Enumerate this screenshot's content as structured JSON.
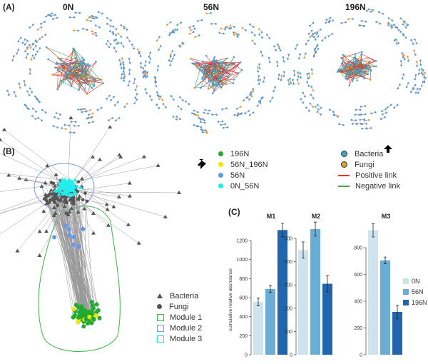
{
  "panel_a": {
    "label": "(A)",
    "networks": [
      {
        "title": "0N"
      },
      {
        "title": "56N"
      },
      {
        "title": "196N"
      }
    ]
  },
  "panel_b": {
    "label": "(B)",
    "group_legend": [
      {
        "label": "196N",
        "color": "#22aa33"
      },
      {
        "label": "56N_196N",
        "color": "#f2e600"
      },
      {
        "label": "56N",
        "color": "#6699ee"
      },
      {
        "label": "0N_56N",
        "color": "#22eeee"
      }
    ],
    "shape_legend": [
      {
        "label": "Bacteria",
        "symbol": "triangle"
      },
      {
        "label": "Fungi",
        "symbol": "circle"
      }
    ],
    "module_legend": [
      {
        "label": "Module 1",
        "color": "#33bb44"
      },
      {
        "label": "Module 2",
        "color": "#7799dd"
      },
      {
        "label": "Module 3",
        "color": "#22dddd"
      }
    ]
  },
  "network_legend": [
    {
      "label": "Bacteria",
      "kind": "dot",
      "color": "#4a9fd0"
    },
    {
      "label": "Fungi",
      "kind": "dot",
      "color": "#e0a030"
    },
    {
      "label": "Positive link",
      "kind": "line",
      "color": "#e83030"
    },
    {
      "label": "Negative link",
      "kind": "line",
      "color": "#44aa44"
    }
  ],
  "colors": {
    "node_bacteria": "#4a9fd0",
    "node_fungi": "#e0a030",
    "pos": "#e83030",
    "neg": "#44aa44"
  },
  "chart_data": {
    "type": "bar",
    "label": "(C)",
    "ylabel": "cumulative relative abundance",
    "categories": [
      "0N",
      "56N",
      "196N"
    ],
    "colors": [
      "#cfe3ef",
      "#6aaed6",
      "#2166ac"
    ],
    "panels": [
      {
        "title": "M1",
        "values": [
          555,
          690,
          1310
        ],
        "errors": [
          40,
          35,
          70
        ],
        "ylim": [
          0,
          1380
        ],
        "ticks": [
          0,
          200,
          400,
          600,
          800,
          1000,
          1200
        ]
      },
      {
        "title": "M2",
        "values": [
          450,
          540,
          305
        ],
        "errors": [
          35,
          30,
          35
        ],
        "ylim": [
          0,
          575
        ],
        "ticks": [
          0,
          100,
          200,
          300,
          400,
          500
        ]
      },
      {
        "title": "M3",
        "values": [
          930,
          705,
          320
        ],
        "errors": [
          50,
          25,
          50
        ],
        "ylim": [
          0,
          1000
        ],
        "ticks": [
          0,
          200,
          400,
          600,
          800
        ]
      }
    ]
  }
}
